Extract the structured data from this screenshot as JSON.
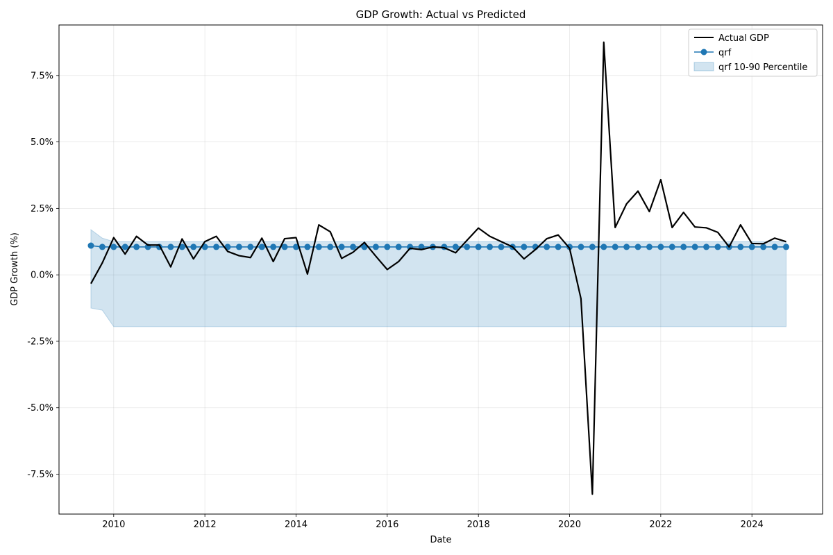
{
  "chart_data": {
    "type": "line",
    "title": "GDP Growth: Actual vs Predicted",
    "xlabel": "Date",
    "ylabel": "GDP Growth (%)",
    "xlim": [
      2008.8,
      2025.55
    ],
    "ylim": [
      -9.0,
      9.4
    ],
    "x_ticks": [
      2010,
      2012,
      2014,
      2016,
      2018,
      2020,
      2022,
      2024
    ],
    "y_ticks": [
      -7.5,
      -5.0,
      -2.5,
      0.0,
      2.5,
      5.0,
      7.5
    ],
    "y_tick_labels": [
      "-7.5%",
      "-5.0%",
      "-2.5%",
      "0.0%",
      "2.5%",
      "5.0%",
      "7.5%"
    ],
    "grid": true,
    "legend_position": "top-right",
    "x": [
      2009.5,
      2009.75,
      2010.0,
      2010.25,
      2010.5,
      2010.75,
      2011.0,
      2011.25,
      2011.5,
      2011.75,
      2012.0,
      2012.25,
      2012.5,
      2012.75,
      2013.0,
      2013.25,
      2013.5,
      2013.75,
      2014.0,
      2014.25,
      2014.5,
      2014.75,
      2015.0,
      2015.25,
      2015.5,
      2015.75,
      2016.0,
      2016.25,
      2016.5,
      2016.75,
      2017.0,
      2017.25,
      2017.5,
      2017.75,
      2018.0,
      2018.25,
      2018.5,
      2018.75,
      2019.0,
      2019.25,
      2019.5,
      2019.75,
      2020.0,
      2020.25,
      2020.5,
      2020.75,
      2021.0,
      2021.25,
      2021.5,
      2021.75,
      2022.0,
      2022.25,
      2022.5,
      2022.75,
      2023.0,
      2023.25,
      2023.5,
      2023.75,
      2024.0,
      2024.25,
      2024.5,
      2024.75
    ],
    "series": [
      {
        "name": "Actual GDP",
        "color": "#000000",
        "values": [
          -0.33,
          0.45,
          1.4,
          0.78,
          1.45,
          1.12,
          1.12,
          0.3,
          1.35,
          0.6,
          1.25,
          1.45,
          0.88,
          0.72,
          0.65,
          1.38,
          0.5,
          1.36,
          1.4,
          0.03,
          1.88,
          1.62,
          0.62,
          0.85,
          1.22,
          0.7,
          0.2,
          0.5,
          1.0,
          0.95,
          1.05,
          1.02,
          0.83,
          1.3,
          1.76,
          1.45,
          1.25,
          1.05,
          0.6,
          0.95,
          1.36,
          1.5,
          1.0,
          -0.9,
          -8.25,
          8.75,
          1.78,
          2.67,
          3.15,
          2.38,
          3.58,
          1.78,
          2.35,
          1.8,
          1.77,
          1.6,
          1.05,
          1.88,
          1.18,
          1.17,
          1.38,
          1.25
        ]
      },
      {
        "name": "qrf",
        "color": "#1f77b4",
        "values": [
          1.1,
          1.05,
          1.05,
          1.05,
          1.05,
          1.05,
          1.05,
          1.05,
          1.05,
          1.05,
          1.05,
          1.05,
          1.05,
          1.05,
          1.05,
          1.05,
          1.05,
          1.05,
          1.05,
          1.05,
          1.05,
          1.05,
          1.05,
          1.05,
          1.05,
          1.05,
          1.05,
          1.05,
          1.05,
          1.05,
          1.05,
          1.05,
          1.05,
          1.05,
          1.05,
          1.05,
          1.05,
          1.05,
          1.05,
          1.05,
          1.05,
          1.05,
          1.05,
          1.05,
          1.05,
          1.05,
          1.05,
          1.05,
          1.05,
          1.05,
          1.05,
          1.05,
          1.05,
          1.05,
          1.05,
          1.05,
          1.05,
          1.05,
          1.05,
          1.05,
          1.05,
          1.05
        ]
      }
    ],
    "band": {
      "name": "qrf 10-90 Percentile",
      "color": "#1f77b4",
      "upper": [
        1.7,
        1.38,
        1.25,
        1.25,
        1.25,
        1.25,
        1.25,
        1.25,
        1.25,
        1.25,
        1.25,
        1.25,
        1.25,
        1.25,
        1.25,
        1.25,
        1.25,
        1.25,
        1.25,
        1.25,
        1.25,
        1.25,
        1.25,
        1.25,
        1.25,
        1.25,
        1.25,
        1.25,
        1.25,
        1.25,
        1.25,
        1.25,
        1.25,
        1.25,
        1.25,
        1.25,
        1.25,
        1.25,
        1.25,
        1.25,
        1.25,
        1.25,
        1.25,
        1.25,
        1.25,
        1.25,
        1.25,
        1.25,
        1.25,
        1.25,
        1.25,
        1.25,
        1.25,
        1.25,
        1.25,
        1.25,
        1.25,
        1.25,
        1.25,
        1.25,
        1.25,
        1.25
      ],
      "lower": [
        -1.25,
        -1.33,
        -1.95,
        -1.95,
        -1.95,
        -1.95,
        -1.95,
        -1.95,
        -1.95,
        -1.95,
        -1.95,
        -1.95,
        -1.95,
        -1.95,
        -1.95,
        -1.95,
        -1.95,
        -1.95,
        -1.95,
        -1.95,
        -1.95,
        -1.95,
        -1.95,
        -1.95,
        -1.95,
        -1.95,
        -1.95,
        -1.95,
        -1.95,
        -1.95,
        -1.95,
        -1.95,
        -1.95,
        -1.95,
        -1.95,
        -1.95,
        -1.95,
        -1.95,
        -1.95,
        -1.95,
        -1.95,
        -1.95,
        -1.95,
        -1.95,
        -1.95,
        -1.95,
        -1.95,
        -1.95,
        -1.95,
        -1.95,
        -1.95,
        -1.95,
        -1.95,
        -1.95,
        -1.95,
        -1.95,
        -1.95,
        -1.95,
        -1.95,
        -1.95,
        -1.95,
        -1.95
      ]
    }
  }
}
